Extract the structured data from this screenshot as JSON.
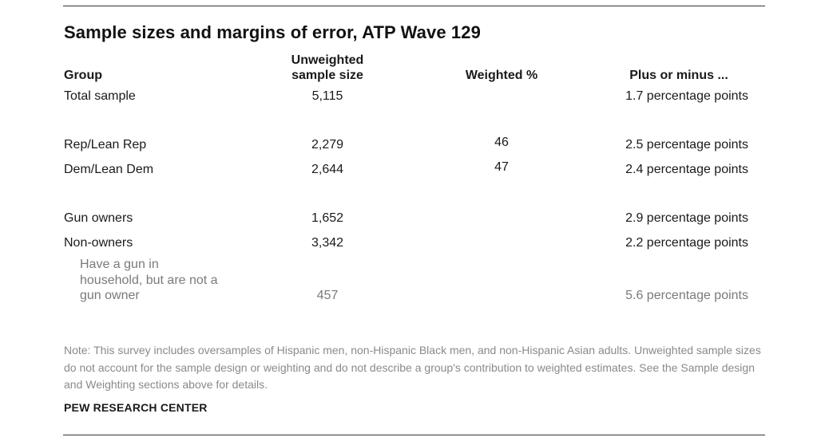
{
  "title": "Sample sizes and margins of error, ATP Wave 129",
  "headers": {
    "group": "Group",
    "unweighted_line1": "Unweighted",
    "unweighted_line2": "sample size",
    "weighted": "Weighted %",
    "margin": "Plus or minus ..."
  },
  "rows": [
    {
      "group": "Total sample",
      "n": "5,115",
      "weighted": "",
      "margin": "1.7 percentage points"
    },
    {
      "group": "Rep/Lean Rep",
      "n": "2,279",
      "weighted": "46",
      "margin": "2.5 percentage points"
    },
    {
      "group": "Dem/Lean Dem",
      "n": "2,644",
      "weighted": "47",
      "margin": "2.4 percentage points"
    },
    {
      "group": "Gun owners",
      "n": "1,652",
      "weighted": "",
      "margin": "2.9 percentage points"
    },
    {
      "group": "Non-owners",
      "n": "3,342",
      "weighted": "",
      "margin": "2.2 percentage points"
    },
    {
      "group_line1": "Have a gun in",
      "group_line2": "household, but are not a",
      "group_line3": "gun owner",
      "n": "457",
      "weighted": "",
      "margin": "5.6 percentage points"
    }
  ],
  "note": "Note: This survey includes oversamples of Hispanic men, non-Hispanic Black men, and non-Hispanic Asian adults. Unweighted sample sizes do not account for the sample design or weighting and do not describe a group's contribution to weighted estimates. See the Sample design and Weighting sections above for details.",
  "source": "PEW RESEARCH CENTER",
  "chart_data": {
    "type": "table",
    "title": "Sample sizes and margins of error, ATP Wave 129",
    "columns": [
      "Group",
      "Unweighted sample size",
      "Weighted %",
      "Plus or minus ..."
    ],
    "rows": [
      [
        "Total sample",
        5115,
        null,
        "1.7 percentage points"
      ],
      [
        "Rep/Lean Rep",
        2279,
        46,
        "2.5 percentage points"
      ],
      [
        "Dem/Lean Dem",
        2644,
        47,
        "2.4 percentage points"
      ],
      [
        "Gun owners",
        1652,
        null,
        "2.9 percentage points"
      ],
      [
        "Non-owners",
        3342,
        null,
        "2.2 percentage points"
      ],
      [
        "Have a gun in household, but are not a gun owner",
        457,
        null,
        "5.6 percentage points"
      ]
    ]
  }
}
